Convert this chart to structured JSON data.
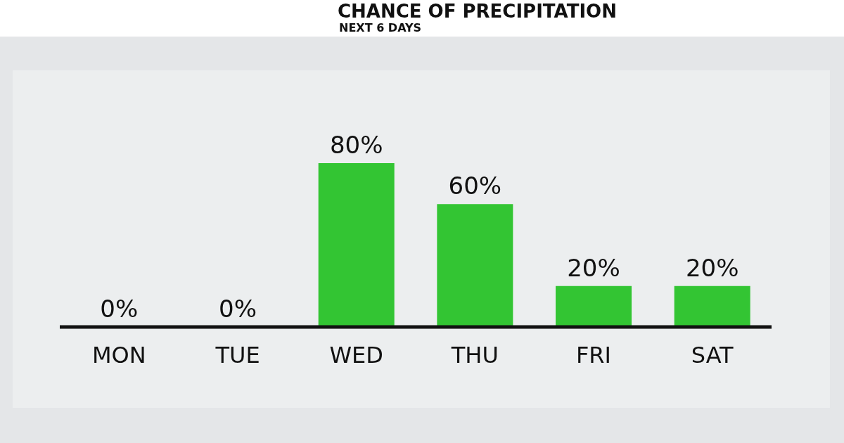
{
  "chart_data": {
    "type": "bar",
    "title": "CHANCE OF PRECIPITATION",
    "subtitle": "NEXT 6 DAYS",
    "categories": [
      "MON",
      "TUE",
      "WED",
      "THU",
      "FRI",
      "SAT"
    ],
    "values": [
      0,
      0,
      80,
      60,
      20,
      20
    ],
    "value_labels": [
      "0%",
      "0%",
      "80%",
      "60%",
      "20%",
      "20%"
    ],
    "color": "#33c533",
    "grid": false,
    "legend": false
  }
}
